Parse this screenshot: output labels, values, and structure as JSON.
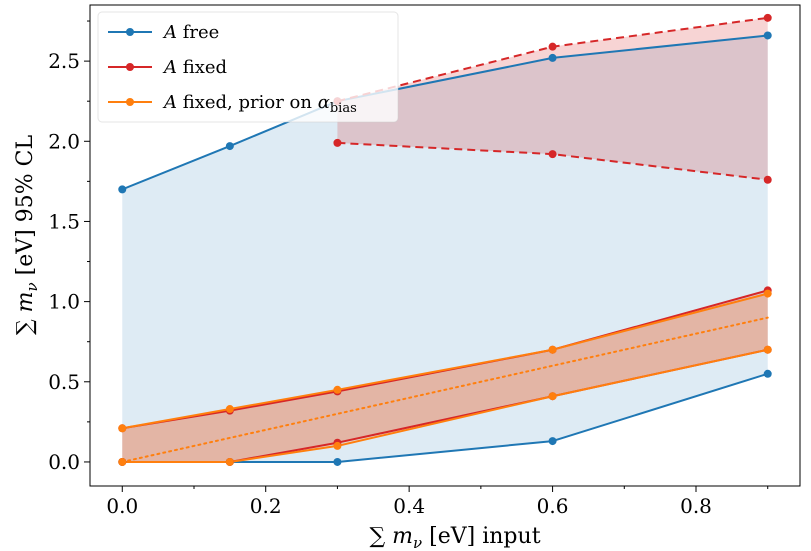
{
  "chart_data": {
    "type": "line",
    "xlabel": "∑ m_ν [eV] input",
    "ylabel": "∑ m_ν [eV] 95% CL",
    "xlim": [
      -0.045,
      0.945
    ],
    "ylim": [
      -0.15,
      2.85
    ],
    "xticks": [
      0.0,
      0.2,
      0.4,
      0.6,
      0.8
    ],
    "xtick_labels": [
      "0.0",
      "0.2",
      "0.4",
      "0.6",
      "0.8"
    ],
    "yticks": [
      0.0,
      0.5,
      1.0,
      1.5,
      2.0,
      2.5
    ],
    "ytick_labels": [
      "0.0",
      "0.5",
      "1.0",
      "1.5",
      "2.0",
      "2.5"
    ],
    "grid": false,
    "legend_position": "top-left",
    "series": [
      {
        "name": "A free",
        "color": "#1f77b4",
        "fill_color": "#1f77b4",
        "fill_opacity": 0.15,
        "x": [
          0.0,
          0.15,
          0.3,
          0.6,
          0.9
        ],
        "upper": [
          1.7,
          1.97,
          2.25,
          2.52,
          2.66
        ],
        "lower": [
          0.0,
          0.0,
          0.0,
          0.13,
          0.55
        ],
        "upper_style": "solid",
        "lower_style": "solid"
      },
      {
        "name": "A fixed",
        "color": "#d62728",
        "fill_color": "#d62728",
        "fill_opacity": 0.2,
        "bands": [
          {
            "x": [
              0.3,
              0.6,
              0.9
            ],
            "upper": [
              2.25,
              2.59,
              2.77
            ],
            "lower": [
              1.99,
              1.92,
              1.76
            ],
            "style": "dashed"
          },
          {
            "x": [
              0.0,
              0.15,
              0.3,
              0.6,
              0.9
            ],
            "upper": [
              0.21,
              0.32,
              0.44,
              0.7,
              1.07
            ],
            "lower": [
              0.0,
              0.0,
              0.12,
              0.41,
              0.7
            ],
            "style": "solid"
          }
        ]
      },
      {
        "name": "A fixed, prior on α_bias",
        "color": "#ff7f0e",
        "fill_color": "#ff7f0e",
        "fill_opacity": 0.2,
        "x": [
          0.0,
          0.15,
          0.3,
          0.6,
          0.9
        ],
        "upper": [
          0.21,
          0.33,
          0.45,
          0.7,
          1.05
        ],
        "lower": [
          0.0,
          0.0,
          0.1,
          0.41,
          0.7
        ],
        "upper_style": "solid",
        "lower_style": "solid"
      }
    ],
    "reference_line": {
      "x": [
        0.0,
        0.9
      ],
      "y": [
        0.0,
        0.9
      ],
      "color": "#ff7f0e",
      "style": "dotted"
    }
  }
}
